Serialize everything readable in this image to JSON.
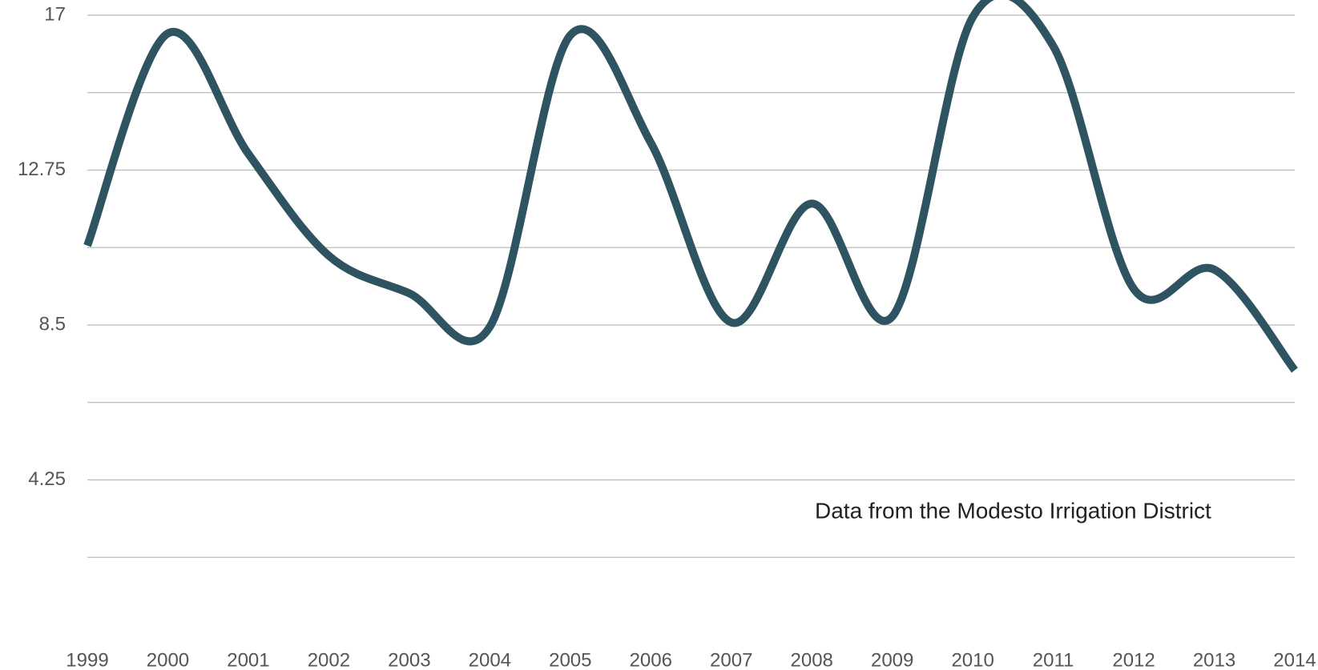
{
  "chart_data": {
    "type": "line",
    "annotation": "Data from the Modesto Irrigation District",
    "x": [
      1999,
      2000,
      2001,
      2002,
      2003,
      2004,
      2005,
      2006,
      2007,
      2008,
      2009,
      2010,
      2011,
      2012,
      2013,
      2014
    ],
    "xlim": [
      1999,
      2014
    ],
    "xticks": [
      1999,
      2000,
      2001,
      2002,
      2003,
      2004,
      2005,
      2006,
      2007,
      2008,
      2009,
      2010,
      2011,
      2012,
      2013,
      2014
    ],
    "series": [
      {
        "color": "#2f5461",
        "values": [
          10.68,
          16.5,
          13.2,
          10.4,
          9.37,
          8.45,
          16.45,
          13.5,
          8.57,
          11.83,
          8.73,
          16.95,
          16.15,
          9.49,
          10.02,
          7.26
        ]
      }
    ],
    "ylim": [
      0,
      17
    ],
    "yticks": [
      17,
      12.75,
      8.5,
      4.25
    ],
    "ygrid": [
      2.125,
      4.25,
      6.375,
      8.5,
      10.625,
      12.75,
      14.875,
      17
    ],
    "smooth": true
  }
}
